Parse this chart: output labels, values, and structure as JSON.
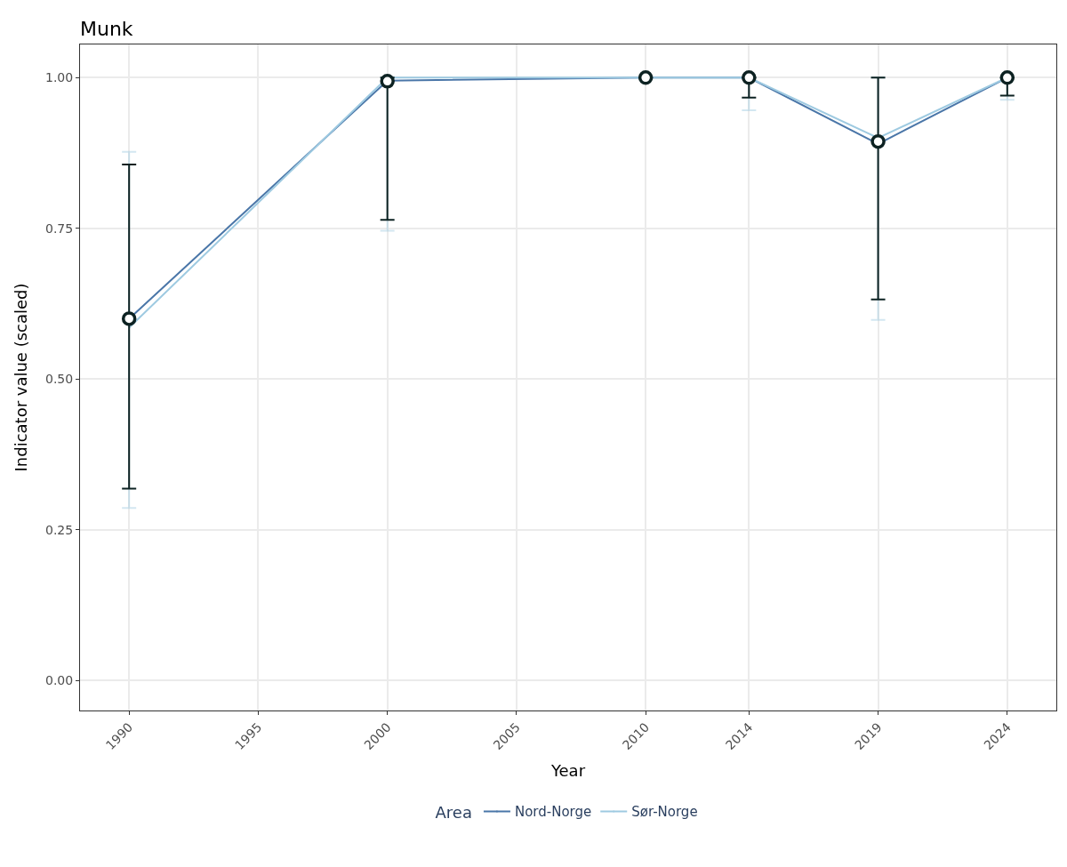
{
  "chart_data": {
    "type": "line",
    "title": "Munk",
    "xlabel": "Year",
    "ylabel": "Indicator value (scaled)",
    "legend_title": "Area",
    "x": [
      1990,
      2000,
      2010,
      2014,
      2019,
      2024
    ],
    "series": [
      {
        "name": "Nord-Norge",
        "color": "#4a76a8",
        "values": [
          0.6,
          0.995,
          1.0,
          1.0,
          0.89,
          1.0
        ],
        "marker": "none"
      },
      {
        "name": "Sør-Norge",
        "color": "#9ecae1",
        "values": [
          0.585,
          1.0,
          1.0,
          1.0,
          0.9,
          1.0
        ],
        "marker": "none",
        "errors": [
          [
            0.286,
            0.877
          ],
          [
            0.746,
            1.0
          ],
          null,
          [
            0.946,
            1.0
          ],
          [
            0.598,
            1.0
          ],
          [
            0.963,
            1.0
          ]
        ]
      },
      {
        "color": "#0d2222",
        "type": "scatter",
        "marker": "circle",
        "values": [
          0.6,
          0.994,
          1.0,
          1.0,
          0.894,
          1.0
        ],
        "errors": [
          [
            0.318,
            0.856
          ],
          [
            0.764,
            1.0
          ],
          null,
          [
            0.967,
            1.0
          ],
          [
            0.632,
            1.0
          ],
          [
            0.97,
            1.0
          ]
        ]
      }
    ],
    "xlim": [
      1988.1,
      2025.9
    ],
    "xticks": [
      1990,
      1995,
      2000,
      2005,
      2010,
      2014,
      2019,
      2024
    ],
    "ylim": [
      -0.05,
      1.055
    ],
    "yticks": [
      {
        "value": 0,
        "label": "0.00"
      },
      {
        "value": 0.25,
        "label": "0.25"
      },
      {
        "value": 0.5,
        "label": "0.50"
      },
      {
        "value": 0.75,
        "label": "0.75"
      },
      {
        "value": 1,
        "label": "1.00"
      }
    ],
    "grid": true,
    "legend": "bottom"
  }
}
